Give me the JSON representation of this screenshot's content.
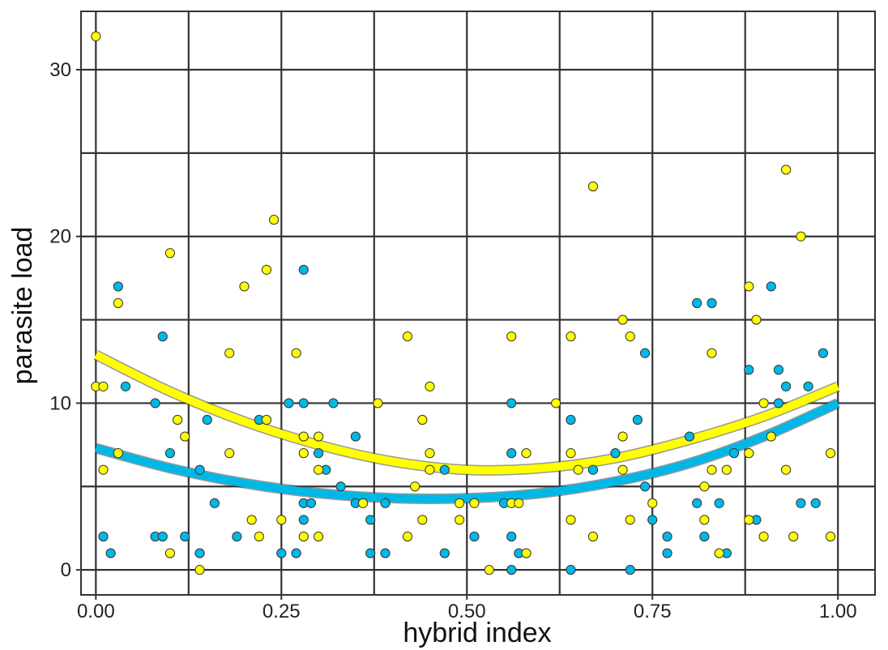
{
  "chart_data": {
    "type": "scatter",
    "title": "",
    "xlabel": "hybrid index",
    "ylabel": "parasite load",
    "xlim": [
      -0.02,
      1.05
    ],
    "ylim": [
      -1.5,
      33.5
    ],
    "x_ticks": [
      0.0,
      0.25,
      0.5,
      0.75,
      1.0
    ],
    "x_tick_labels": [
      "0.00",
      "0.25",
      "0.50",
      "0.75",
      "1.00"
    ],
    "y_ticks": [
      0,
      10,
      20,
      30
    ],
    "y_tick_labels": [
      "0",
      "10",
      "20",
      "30"
    ],
    "x_minor_grid": [
      0.125,
      0.375,
      0.625,
      0.875
    ],
    "y_minor_grid": [
      5,
      15,
      25
    ],
    "grid": true,
    "legend": "none",
    "series": [
      {
        "color": "#00b8e6",
        "points": [
          [
            0.01,
            2
          ],
          [
            0.02,
            1
          ],
          [
            0.03,
            17
          ],
          [
            0.04,
            11
          ],
          [
            0.08,
            10
          ],
          [
            0.08,
            2
          ],
          [
            0.09,
            2
          ],
          [
            0.09,
            14
          ],
          [
            0.1,
            7
          ],
          [
            0.12,
            2
          ],
          [
            0.14,
            1
          ],
          [
            0.14,
            6
          ],
          [
            0.15,
            9
          ],
          [
            0.16,
            4
          ],
          [
            0.19,
            2
          ],
          [
            0.22,
            9
          ],
          [
            0.25,
            1
          ],
          [
            0.26,
            10
          ],
          [
            0.27,
            1
          ],
          [
            0.28,
            18
          ],
          [
            0.28,
            10
          ],
          [
            0.28,
            4
          ],
          [
            0.28,
            3
          ],
          [
            0.29,
            4
          ],
          [
            0.3,
            7
          ],
          [
            0.31,
            6
          ],
          [
            0.32,
            10
          ],
          [
            0.33,
            5
          ],
          [
            0.35,
            8
          ],
          [
            0.35,
            4
          ],
          [
            0.37,
            3
          ],
          [
            0.37,
            1
          ],
          [
            0.39,
            1
          ],
          [
            0.39,
            4
          ],
          [
            0.47,
            1
          ],
          [
            0.47,
            6
          ],
          [
            0.51,
            2
          ],
          [
            0.55,
            4
          ],
          [
            0.56,
            10
          ],
          [
            0.56,
            7
          ],
          [
            0.56,
            2
          ],
          [
            0.56,
            0
          ],
          [
            0.57,
            1
          ],
          [
            0.64,
            9
          ],
          [
            0.64,
            0
          ],
          [
            0.67,
            6
          ],
          [
            0.7,
            7
          ],
          [
            0.72,
            0
          ],
          [
            0.73,
            9
          ],
          [
            0.74,
            13
          ],
          [
            0.74,
            5
          ],
          [
            0.75,
            3
          ],
          [
            0.77,
            2
          ],
          [
            0.77,
            1
          ],
          [
            0.8,
            8
          ],
          [
            0.81,
            16
          ],
          [
            0.81,
            4
          ],
          [
            0.82,
            2
          ],
          [
            0.83,
            16
          ],
          [
            0.84,
            4
          ],
          [
            0.85,
            1
          ],
          [
            0.86,
            7
          ],
          [
            0.88,
            12
          ],
          [
            0.89,
            3
          ],
          [
            0.91,
            17
          ],
          [
            0.92,
            12
          ],
          [
            0.92,
            10
          ],
          [
            0.93,
            11
          ],
          [
            0.95,
            4
          ],
          [
            0.96,
            11
          ],
          [
            0.97,
            4
          ],
          [
            0.98,
            13
          ]
        ],
        "fit": [
          [
            0.0,
            7.3
          ],
          [
            0.1,
            6.1
          ],
          [
            0.2,
            5.2
          ],
          [
            0.3,
            4.6
          ],
          [
            0.4,
            4.3
          ],
          [
            0.5,
            4.3
          ],
          [
            0.6,
            4.6
          ],
          [
            0.7,
            5.3
          ],
          [
            0.8,
            6.4
          ],
          [
            0.9,
            8.0
          ],
          [
            1.0,
            10.0
          ]
        ]
      },
      {
        "color": "#ffff00",
        "points": [
          [
            0.0,
            32
          ],
          [
            0.0,
            11
          ],
          [
            0.01,
            11
          ],
          [
            0.01,
            6
          ],
          [
            0.03,
            16
          ],
          [
            0.03,
            7
          ],
          [
            0.1,
            19
          ],
          [
            0.1,
            1
          ],
          [
            0.11,
            9
          ],
          [
            0.12,
            8
          ],
          [
            0.14,
            0
          ],
          [
            0.18,
            13
          ],
          [
            0.18,
            7
          ],
          [
            0.2,
            17
          ],
          [
            0.21,
            3
          ],
          [
            0.22,
            2
          ],
          [
            0.23,
            18
          ],
          [
            0.23,
            9
          ],
          [
            0.24,
            21
          ],
          [
            0.25,
            3
          ],
          [
            0.27,
            13
          ],
          [
            0.28,
            8
          ],
          [
            0.28,
            7
          ],
          [
            0.28,
            2
          ],
          [
            0.3,
            8
          ],
          [
            0.3,
            6
          ],
          [
            0.3,
            2
          ],
          [
            0.36,
            4
          ],
          [
            0.38,
            10
          ],
          [
            0.42,
            14
          ],
          [
            0.42,
            2
          ],
          [
            0.43,
            5
          ],
          [
            0.44,
            9
          ],
          [
            0.44,
            3
          ],
          [
            0.45,
            11
          ],
          [
            0.45,
            7
          ],
          [
            0.45,
            6
          ],
          [
            0.49,
            4
          ],
          [
            0.49,
            3
          ],
          [
            0.51,
            4
          ],
          [
            0.53,
            0
          ],
          [
            0.56,
            14
          ],
          [
            0.56,
            4
          ],
          [
            0.57,
            4
          ],
          [
            0.58,
            1
          ],
          [
            0.58,
            7
          ],
          [
            0.62,
            10
          ],
          [
            0.64,
            14
          ],
          [
            0.64,
            7
          ],
          [
            0.64,
            3
          ],
          [
            0.65,
            6
          ],
          [
            0.67,
            23
          ],
          [
            0.67,
            2
          ],
          [
            0.71,
            15
          ],
          [
            0.71,
            8
          ],
          [
            0.71,
            6
          ],
          [
            0.72,
            14
          ],
          [
            0.72,
            3
          ],
          [
            0.75,
            4
          ],
          [
            0.82,
            5
          ],
          [
            0.82,
            3
          ],
          [
            0.83,
            13
          ],
          [
            0.83,
            6
          ],
          [
            0.84,
            1
          ],
          [
            0.85,
            6
          ],
          [
            0.88,
            17
          ],
          [
            0.88,
            7
          ],
          [
            0.88,
            3
          ],
          [
            0.89,
            15
          ],
          [
            0.9,
            10
          ],
          [
            0.9,
            2
          ],
          [
            0.91,
            8
          ],
          [
            0.93,
            24
          ],
          [
            0.93,
            6
          ],
          [
            0.94,
            2
          ],
          [
            0.95,
            20
          ],
          [
            0.99,
            7
          ],
          [
            0.99,
            2
          ]
        ],
        "fit": [
          [
            0.0,
            12.9
          ],
          [
            0.1,
            10.7
          ],
          [
            0.2,
            8.9
          ],
          [
            0.3,
            7.5
          ],
          [
            0.4,
            6.5
          ],
          [
            0.5,
            6.0
          ],
          [
            0.6,
            6.1
          ],
          [
            0.7,
            6.7
          ],
          [
            0.8,
            7.8
          ],
          [
            0.9,
            9.2
          ],
          [
            1.0,
            11.0
          ]
        ]
      }
    ]
  }
}
